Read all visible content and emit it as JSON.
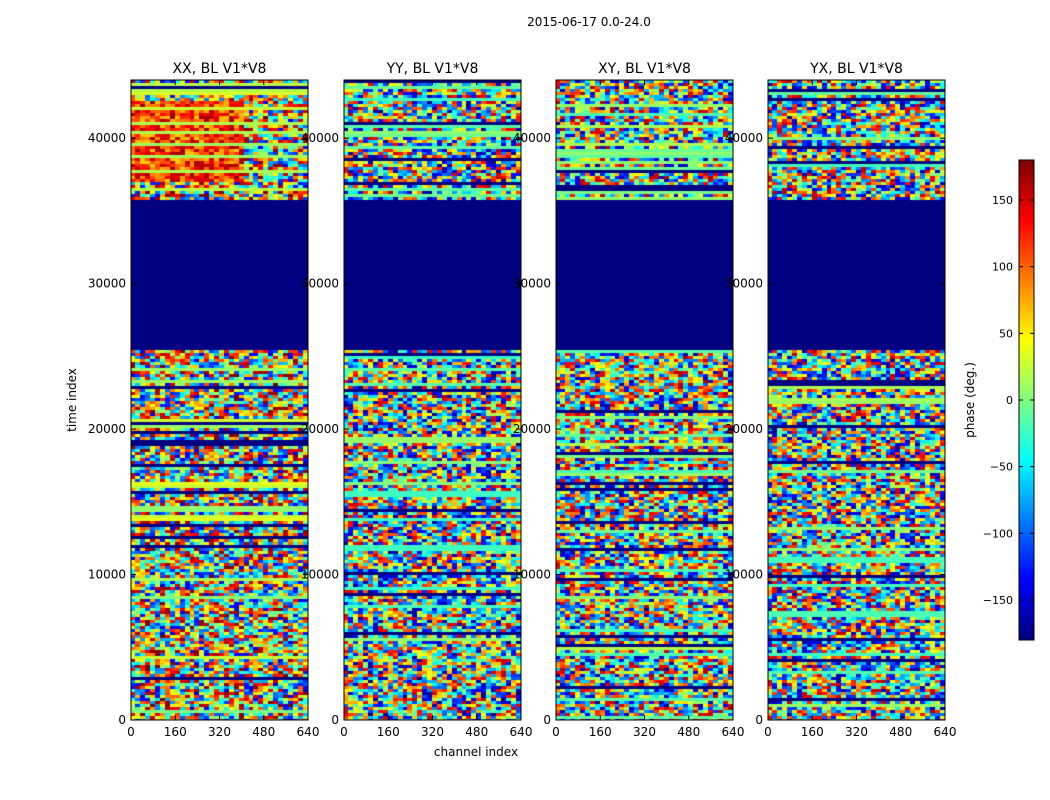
{
  "chart_data": {
    "type": "heatmap",
    "suptitle": "2015-06-17 0.0-24.0",
    "xlabel": "channel index",
    "ylabel": "time index",
    "xlim": [
      0,
      640
    ],
    "ylim": [
      0,
      44000
    ],
    "xticks": [
      "0",
      "160",
      "320",
      "480",
      "640"
    ],
    "xtick_values": [
      0,
      160,
      320,
      480,
      640
    ],
    "yticks": [
      "0",
      "10000",
      "20000",
      "30000",
      "40000"
    ],
    "ytick_values": [
      0,
      10000,
      20000,
      30000,
      40000
    ],
    "flagged_time_range": [
      25500,
      35800
    ],
    "panels": [
      {
        "title": "XX, BL V1*V8",
        "bias": 18,
        "hot_range": [
          37000,
          42500
        ]
      },
      {
        "title": "YY, BL V1*V8",
        "bias": -8,
        "hot_range": []
      },
      {
        "title": "XY, BL V1*V8",
        "bias": 0,
        "hot_range": []
      },
      {
        "title": "YX, BL V1*V8",
        "bias": -4,
        "hot_range": []
      }
    ],
    "colorbar": {
      "label": "phase (deg.)",
      "range": [
        -180,
        180
      ],
      "ticks": [
        "−150",
        "−100",
        "−50",
        "0",
        "50",
        "100",
        "150"
      ],
      "tick_values": [
        -150,
        -100,
        -50,
        0,
        50,
        100,
        150
      ],
      "colormap": "jet"
    }
  }
}
